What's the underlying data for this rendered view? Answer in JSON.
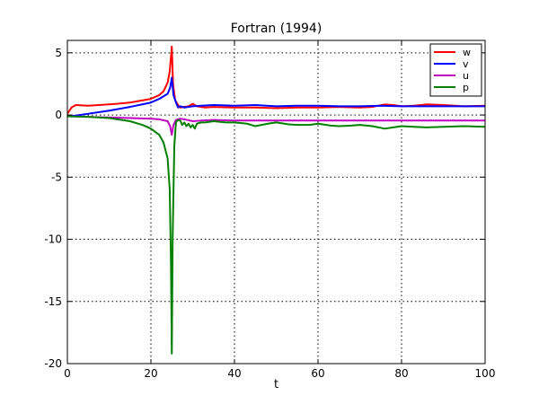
{
  "chart_data": {
    "type": "line",
    "title": "Fortran (1994)",
    "xlabel": "t",
    "ylabel": "",
    "xlim": [
      0,
      100
    ],
    "ylim": [
      -20,
      6
    ],
    "xticks": [
      0,
      20,
      40,
      60,
      80,
      100
    ],
    "yticks": [
      5,
      0,
      -5,
      -10,
      -15,
      -20
    ],
    "grid": true,
    "legend_position": "top-right",
    "series": [
      {
        "name": "w",
        "color": "#ff0000",
        "x": [
          0,
          1,
          2,
          5,
          10,
          15,
          20,
          22,
          23,
          24,
          24.5,
          25,
          25.3,
          25.8,
          26.5,
          27,
          28,
          29,
          30,
          31,
          33,
          35,
          40,
          45,
          50,
          55,
          60,
          65,
          70,
          73,
          76,
          78,
          80,
          83,
          86,
          90,
          95,
          100
        ],
        "y": [
          0.1,
          0.6,
          0.8,
          0.75,
          0.85,
          1.0,
          1.3,
          1.6,
          1.9,
          2.6,
          3.5,
          5.5,
          2.5,
          1.2,
          0.8,
          0.6,
          0.65,
          0.7,
          0.9,
          0.7,
          0.6,
          0.65,
          0.6,
          0.6,
          0.55,
          0.6,
          0.6,
          0.65,
          0.6,
          0.65,
          0.85,
          0.8,
          0.7,
          0.75,
          0.85,
          0.8,
          0.7,
          0.75
        ]
      },
      {
        "name": "v",
        "color": "#0000ff",
        "x": [
          0,
          2,
          5,
          10,
          15,
          20,
          22,
          24,
          24.6,
          25,
          25.4,
          26,
          26.5,
          27,
          28,
          30,
          32,
          35,
          40,
          45,
          50,
          55,
          60,
          65,
          70,
          75,
          80,
          85,
          90,
          95,
          100
        ],
        "y": [
          -0.1,
          -0.05,
          0.1,
          0.35,
          0.65,
          1.0,
          1.3,
          1.7,
          2.2,
          3.0,
          1.6,
          1.0,
          0.6,
          0.7,
          0.6,
          0.7,
          0.75,
          0.8,
          0.75,
          0.8,
          0.7,
          0.75,
          0.75,
          0.7,
          0.7,
          0.75,
          0.7,
          0.7,
          0.7,
          0.7,
          0.7
        ]
      },
      {
        "name": "u",
        "color": "#bf00bf",
        "x": [
          0,
          5,
          10,
          15,
          20,
          22,
          24,
          24.6,
          25,
          25.4,
          26,
          27,
          28,
          30,
          32,
          35,
          40,
          50,
          60,
          70,
          80,
          90,
          100
        ],
        "y": [
          -0.1,
          -0.15,
          -0.2,
          -0.25,
          -0.3,
          -0.35,
          -0.5,
          -0.9,
          -1.6,
          -0.8,
          -0.4,
          -0.3,
          -0.35,
          -0.5,
          -0.45,
          -0.4,
          -0.45,
          -0.45,
          -0.45,
          -0.45,
          -0.45,
          -0.45,
          -0.45
        ]
      },
      {
        "name": "p",
        "color": "#008000",
        "x": [
          0,
          5,
          10,
          15,
          18,
          20,
          22,
          23,
          24,
          24.5,
          24.8,
          25.0,
          25.2,
          25.6,
          26,
          26.5,
          27,
          27.5,
          28,
          28.5,
          29,
          29.5,
          30,
          30.5,
          31,
          32,
          33,
          35,
          38,
          40,
          43,
          45,
          48,
          50,
          53,
          55,
          58,
          60,
          63,
          65,
          68,
          70,
          73,
          76,
          78,
          80,
          83,
          86,
          90,
          95,
          100
        ],
        "y": [
          -0.1,
          -0.15,
          -0.25,
          -0.5,
          -0.8,
          -1.1,
          -1.6,
          -2.2,
          -3.5,
          -6.0,
          -12.0,
          -19.2,
          -10.0,
          -2.5,
          -0.6,
          -0.4,
          -0.45,
          -0.8,
          -0.6,
          -0.9,
          -0.7,
          -1.0,
          -0.8,
          -1.1,
          -0.7,
          -0.6,
          -0.6,
          -0.5,
          -0.6,
          -0.6,
          -0.7,
          -0.9,
          -0.7,
          -0.6,
          -0.75,
          -0.8,
          -0.8,
          -0.7,
          -0.85,
          -0.9,
          -0.85,
          -0.8,
          -0.9,
          -1.1,
          -1.0,
          -0.9,
          -0.95,
          -1.0,
          -0.95,
          -0.9,
          -0.95
        ]
      }
    ]
  }
}
